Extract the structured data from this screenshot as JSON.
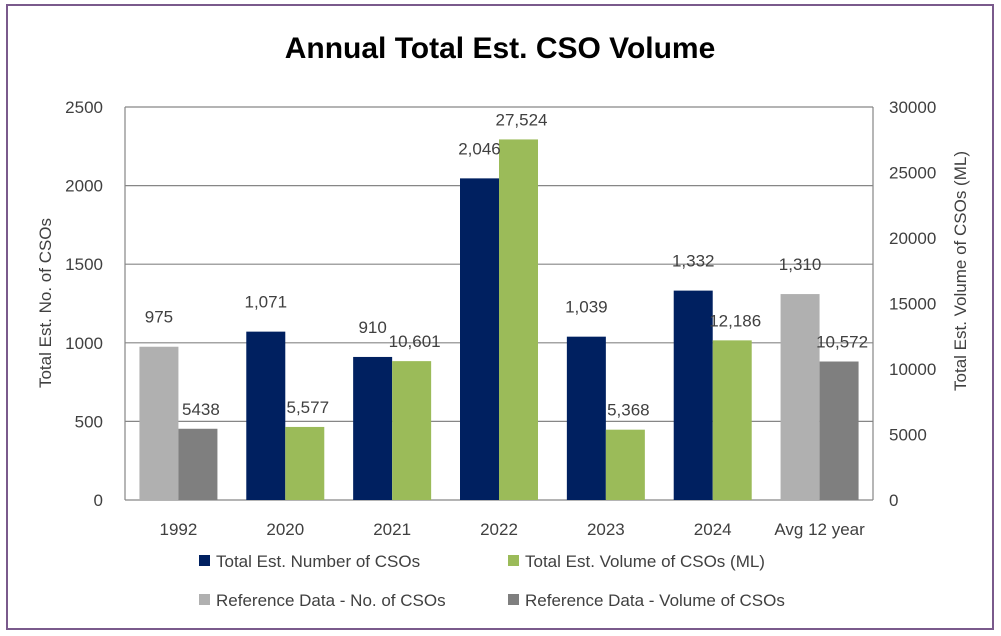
{
  "chart_data": {
    "type": "bar",
    "title": "Annual Total Est. CSO Volume",
    "categories": [
      "1992",
      "2020",
      "2021",
      "2022",
      "2023",
      "2024",
      "Avg 12 year"
    ],
    "ylabel": "Total Est. No. of CSOs",
    "y2label": "Total Est. Volume of CSOs (ML)",
    "ylim": [
      0,
      2500
    ],
    "yticks": [
      0,
      500,
      1000,
      1500,
      2000,
      2500
    ],
    "y2lim": [
      0,
      30000
    ],
    "y2ticks": [
      0,
      5000,
      10000,
      15000,
      20000,
      25000,
      30000
    ],
    "grid": true,
    "legend_position": "bottom",
    "series": [
      {
        "key": "number",
        "name": "Total Est. Number of CSOs",
        "axis": "left",
        "color": "#002060",
        "values": [
          975,
          1071,
          910,
          2046,
          1039,
          1332,
          1310
        ],
        "labels": [
          "975",
          "1,071",
          "910",
          "2,046",
          "1,039",
          "1,332",
          "1,310"
        ],
        "reference_color": "#b0b0b0"
      },
      {
        "key": "volume",
        "name": "Total Est. Volume of CSOs (ML)",
        "axis": "right",
        "color": "#9bbb59",
        "values": [
          5438,
          5577,
          10601,
          27524,
          5368,
          12186,
          10572
        ],
        "labels": [
          "5438",
          "5,577",
          "10,601",
          "27,524",
          "5,368",
          "12,186",
          "10,572"
        ],
        "reference_color": "#7f7f7f"
      }
    ],
    "reference_categories": [
      "1992",
      "Avg 12 year"
    ],
    "legend": [
      {
        "label": "Total Est. Number of CSOs",
        "color": "#002060"
      },
      {
        "label": "Total Est. Volume of CSOs (ML)",
        "color": "#9bbb59"
      },
      {
        "label": "Reference Data - No. of CSOs",
        "color": "#b0b0b0"
      },
      {
        "label": "Reference Data - Volume of CSOs",
        "color": "#7f7f7f"
      }
    ]
  }
}
